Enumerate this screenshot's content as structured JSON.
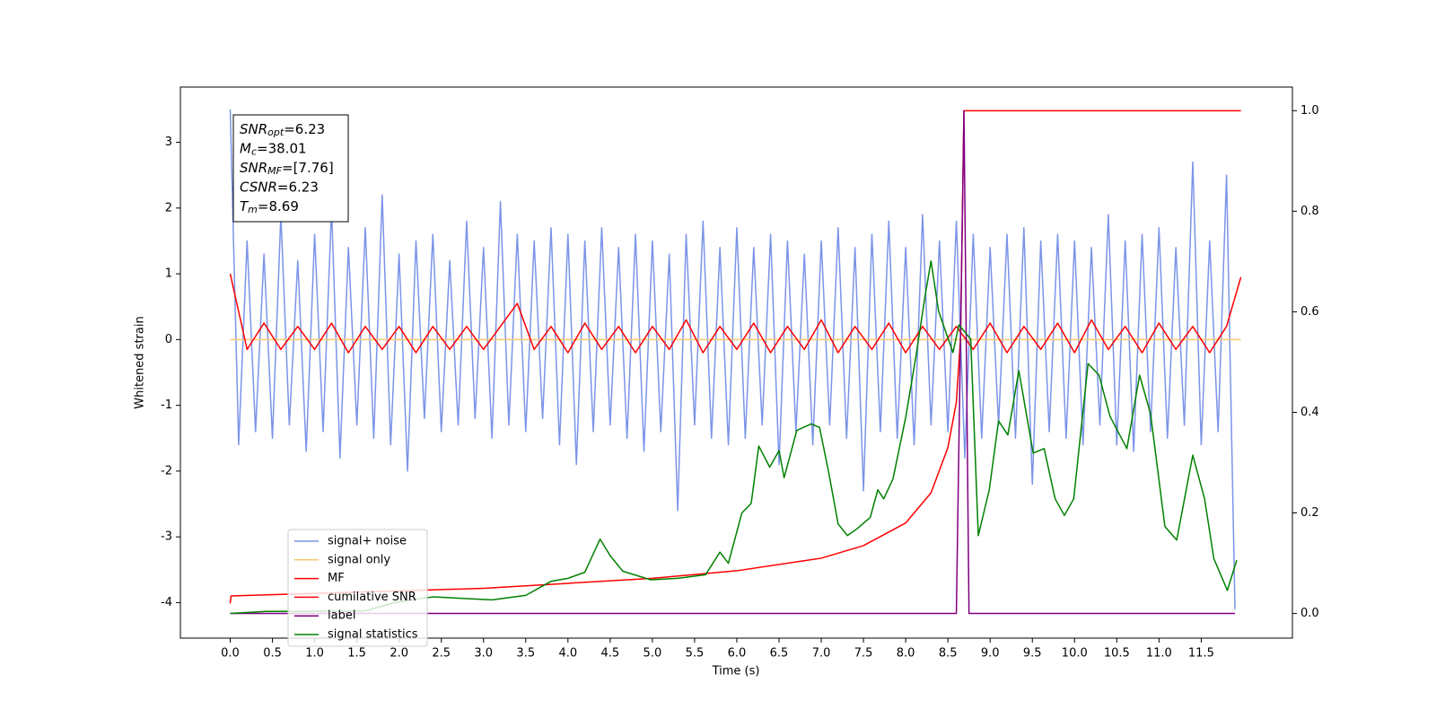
{
  "chart_data": {
    "type": "line",
    "xlabel": "Time (s)",
    "ylabel": "Whitened strain",
    "xlim": [
      -0.59,
      12.58
    ],
    "ylim": [
      -4.54,
      3.84
    ],
    "y2lim": [
      -0.049,
      1.047
    ],
    "xticks": [
      {
        "value": 0,
        "label": "0.0"
      },
      {
        "value": 0.5,
        "label": "0.5"
      },
      {
        "value": 1,
        "label": "1.0"
      },
      {
        "value": 1.5,
        "label": "1.5"
      },
      {
        "value": 2,
        "label": "2.0"
      },
      {
        "value": 2.5,
        "label": "2.5"
      },
      {
        "value": 3,
        "label": "3.0"
      },
      {
        "value": 3.5,
        "label": "3.5"
      },
      {
        "value": 4,
        "label": "4.0"
      },
      {
        "value": 4.5,
        "label": "4.5"
      },
      {
        "value": 5,
        "label": "5.0"
      },
      {
        "value": 5.5,
        "label": "5.5"
      },
      {
        "value": 6,
        "label": "6.0"
      },
      {
        "value": 6.5,
        "label": "6.5"
      },
      {
        "value": 7,
        "label": "7.0"
      },
      {
        "value": 7.5,
        "label": "7.5"
      },
      {
        "value": 8,
        "label": "8.0"
      },
      {
        "value": 8.5,
        "label": "8.5"
      },
      {
        "value": 9,
        "label": "9.0"
      },
      {
        "value": 9.5,
        "label": "9.5"
      },
      {
        "value": 10,
        "label": "10.0"
      },
      {
        "value": 10.5,
        "label": "10.5"
      },
      {
        "value": 11,
        "label": "11.0"
      },
      {
        "value": 11.5,
        "label": "11.5"
      }
    ],
    "yticks": [
      -4,
      -3,
      -2,
      -1,
      0,
      1,
      2,
      3
    ],
    "y2ticks": [
      {
        "value": 0,
        "label": "0.0"
      },
      {
        "value": 0.2,
        "label": "0.2"
      },
      {
        "value": 0.4,
        "label": "0.4"
      },
      {
        "value": 0.6,
        "label": "0.6"
      },
      {
        "value": 0.8,
        "label": "0.8"
      },
      {
        "value": 1,
        "label": "1.0"
      }
    ],
    "legend": "lower left",
    "annotation": [
      {
        "name": "SNR",
        "sub": "opt",
        "text": "=6.23"
      },
      {
        "name": "M",
        "sub": "c",
        "text": "=38.01"
      },
      {
        "name": "SNR",
        "sub": "MF",
        "text": "=[7.76]"
      },
      {
        "name": "CSNR",
        "text": "=6.23"
      },
      {
        "name": "T",
        "sub": "m",
        "text": "=8.69"
      }
    ],
    "series": [
      {
        "name": "signal+ noise",
        "color": "#7b94e8",
        "x": [
          0,
          0.1,
          0.2,
          0.3,
          0.4,
          0.5,
          0.6,
          0.7,
          0.8,
          0.9,
          1,
          1.1,
          1.2,
          1.3,
          1.4,
          1.5,
          1.6,
          1.7,
          1.8,
          1.9,
          2,
          2.1,
          2.2,
          2.3,
          2.4,
          2.5,
          2.6,
          2.7,
          2.8,
          2.9,
          3,
          3.1,
          3.2,
          3.3,
          3.4,
          3.5,
          3.6,
          3.7,
          3.8,
          3.9,
          4,
          4.1,
          4.2,
          4.3,
          4.4,
          4.5,
          4.6,
          4.7,
          4.8,
          4.9,
          5,
          5.1,
          5.2,
          5.3,
          5.4,
          5.5,
          5.6,
          5.7,
          5.8,
          5.9,
          6,
          6.1,
          6.2,
          6.3,
          6.4,
          6.5,
          6.6,
          6.7,
          6.8,
          6.9,
          7,
          7.1,
          7.2,
          7.3,
          7.4,
          7.5,
          7.6,
          7.7,
          7.8,
          7.9,
          8,
          8.1,
          8.2,
          8.3,
          8.4,
          8.5,
          8.6,
          8.7,
          8.8,
          8.9,
          9,
          9.1,
          9.2,
          9.3,
          9.4,
          9.5,
          9.6,
          9.7,
          9.8,
          9.9,
          10,
          10.1,
          10.2,
          10.3,
          10.4,
          10.5,
          10.6,
          10.7,
          10.8,
          10.9,
          11,
          11.1,
          11.2,
          11.3,
          11.4,
          11.5,
          11.6,
          11.7,
          11.8,
          11.9
        ],
        "values": [
          3.5,
          -1.6,
          1.5,
          -1.4,
          1.3,
          -1.5,
          1.9,
          -1.3,
          1.2,
          -1.7,
          1.6,
          -1.4,
          2.0,
          -1.8,
          1.4,
          -1.3,
          1.7,
          -1.5,
          2.2,
          -1.6,
          1.3,
          -2.0,
          1.5,
          -1.2,
          1.6,
          -1.4,
          1.2,
          -1.3,
          1.8,
          -1.2,
          1.4,
          -1.5,
          2.1,
          -1.3,
          1.6,
          -1.4,
          1.5,
          -1.2,
          1.7,
          -1.6,
          1.6,
          -1.9,
          1.5,
          -1.4,
          1.7,
          -1.3,
          1.4,
          -1.5,
          1.6,
          -1.7,
          1.5,
          -1.4,
          1.3,
          -2.6,
          1.6,
          -1.3,
          1.8,
          -1.5,
          1.4,
          -1.6,
          1.7,
          -1.5,
          1.4,
          -1.3,
          1.6,
          -1.9,
          1.5,
          -1.4,
          1.3,
          -1.6,
          1.5,
          -1.3,
          1.7,
          -1.5,
          1.4,
          -2.3,
          1.6,
          -1.4,
          1.8,
          -1.5,
          1.4,
          -1.6,
          1.9,
          -1.3,
          1.5,
          -1.4,
          1.8,
          -1.8,
          1.6,
          -1.5,
          1.4,
          -1.3,
          1.6,
          -1.5,
          1.7,
          -2.2,
          1.5,
          -1.4,
          1.6,
          -1.5,
          1.5,
          -1.6,
          1.4,
          -1.3,
          1.9,
          -1.6,
          1.5,
          -1.7,
          1.6,
          -1.4,
          1.7,
          -1.5,
          1.4,
          -1.3,
          2.7,
          -1.6,
          1.5,
          -1.4,
          2.5,
          -4.1
        ]
      },
      {
        "name": "signal only",
        "color": "#f7c873",
        "x": [
          0,
          11.97
        ],
        "values": [
          0,
          0
        ]
      },
      {
        "name": "MF",
        "color": "#ff0000",
        "x": [
          0,
          0.2,
          0.4,
          0.6,
          0.8,
          1,
          1.2,
          1.4,
          1.6,
          1.8,
          2,
          2.2,
          2.4,
          2.6,
          2.8,
          3,
          3.2,
          3.4,
          3.6,
          3.8,
          4,
          4.2,
          4.4,
          4.6,
          4.8,
          5,
          5.2,
          5.4,
          5.6,
          5.8,
          6,
          6.2,
          6.4,
          6.6,
          6.8,
          7,
          7.2,
          7.4,
          7.6,
          7.8,
          8,
          8.2,
          8.4,
          8.6,
          8.8,
          9,
          9.2,
          9.4,
          9.6,
          9.8,
          10,
          10.2,
          10.4,
          10.6,
          10.8,
          11,
          11.2,
          11.4,
          11.6,
          11.8,
          11.97
        ],
        "values": [
          1.0,
          -0.15,
          0.25,
          -0.15,
          0.2,
          -0.15,
          0.25,
          -0.2,
          0.2,
          -0.15,
          0.2,
          -0.2,
          0.2,
          -0.15,
          0.2,
          -0.15,
          0.2,
          0.55,
          -0.15,
          0.2,
          -0.2,
          0.25,
          -0.15,
          0.2,
          -0.2,
          0.2,
          -0.15,
          0.3,
          -0.2,
          0.2,
          -0.15,
          0.25,
          -0.2,
          0.2,
          -0.15,
          0.3,
          -0.2,
          0.2,
          -0.15,
          0.25,
          -0.2,
          0.2,
          -0.15,
          0.2,
          -0.15,
          0.25,
          -0.2,
          0.2,
          -0.15,
          0.25,
          -0.2,
          0.3,
          -0.15,
          0.2,
          -0.2,
          0.25,
          -0.15,
          0.2,
          -0.2,
          0.2,
          0.95
        ]
      },
      {
        "name": "cumilative SNR",
        "color": "#ff0000",
        "axis": "y2",
        "x": [
          0,
          0.01,
          1,
          2,
          3,
          4,
          5,
          6,
          7,
          7.5,
          8,
          8.3,
          8.5,
          8.6,
          8.65,
          8.69,
          9,
          10,
          11,
          11.97
        ],
        "values": [
          0.02,
          0.035,
          0.04,
          0.045,
          0.05,
          0.06,
          0.07,
          0.085,
          0.11,
          0.135,
          0.18,
          0.24,
          0.33,
          0.42,
          0.55,
          1.0,
          1.0,
          1.0,
          1.0,
          1.0
        ]
      },
      {
        "name": "label",
        "color": "#800080",
        "axis": "y2",
        "x": [
          0,
          8.6,
          8.69,
          8.75,
          11.9
        ],
        "values": [
          0,
          0,
          1.0,
          0,
          0
        ]
      },
      {
        "name": "signal statistics",
        "color": "#008000",
        "axis": "y2",
        "x": [
          0,
          0.42,
          1.6,
          1.95,
          2.4,
          3.1,
          3.5,
          3.8,
          4.0,
          4.2,
          4.38,
          4.5,
          4.65,
          4.98,
          5.3,
          5.63,
          5.8,
          5.9,
          6.06,
          6.17,
          6.26,
          6.39,
          6.5,
          6.56,
          6.71,
          6.88,
          6.98,
          7.09,
          7.2,
          7.31,
          7.42,
          7.58,
          7.67,
          7.74,
          7.85,
          8.0,
          8.12,
          8.23,
          8.3,
          8.39,
          8.56,
          8.63,
          8.77,
          8.86,
          8.99,
          9.1,
          9.21,
          9.34,
          9.51,
          9.64,
          9.77,
          9.88,
          9.99,
          10.16,
          10.29,
          10.42,
          10.62,
          10.77,
          10.9,
          11.07,
          11.21,
          11.4,
          11.54,
          11.65,
          11.81,
          11.92
        ],
        "values": [
          0,
          0.004,
          0.005,
          0.022,
          0.033,
          0.027,
          0.036,
          0.064,
          0.07,
          0.082,
          0.148,
          0.115,
          0.084,
          0.067,
          0.07,
          0.077,
          0.122,
          0.1,
          0.2,
          0.219,
          0.333,
          0.291,
          0.324,
          0.27,
          0.364,
          0.377,
          0.37,
          0.279,
          0.178,
          0.155,
          0.168,
          0.191,
          0.246,
          0.228,
          0.268,
          0.39,
          0.51,
          0.632,
          0.701,
          0.601,
          0.519,
          0.574,
          0.546,
          0.155,
          0.246,
          0.383,
          0.355,
          0.483,
          0.319,
          0.328,
          0.228,
          0.195,
          0.228,
          0.497,
          0.474,
          0.392,
          0.328,
          0.474,
          0.397,
          0.173,
          0.146,
          0.315,
          0.228,
          0.109,
          0.046,
          0.106
        ]
      }
    ]
  }
}
